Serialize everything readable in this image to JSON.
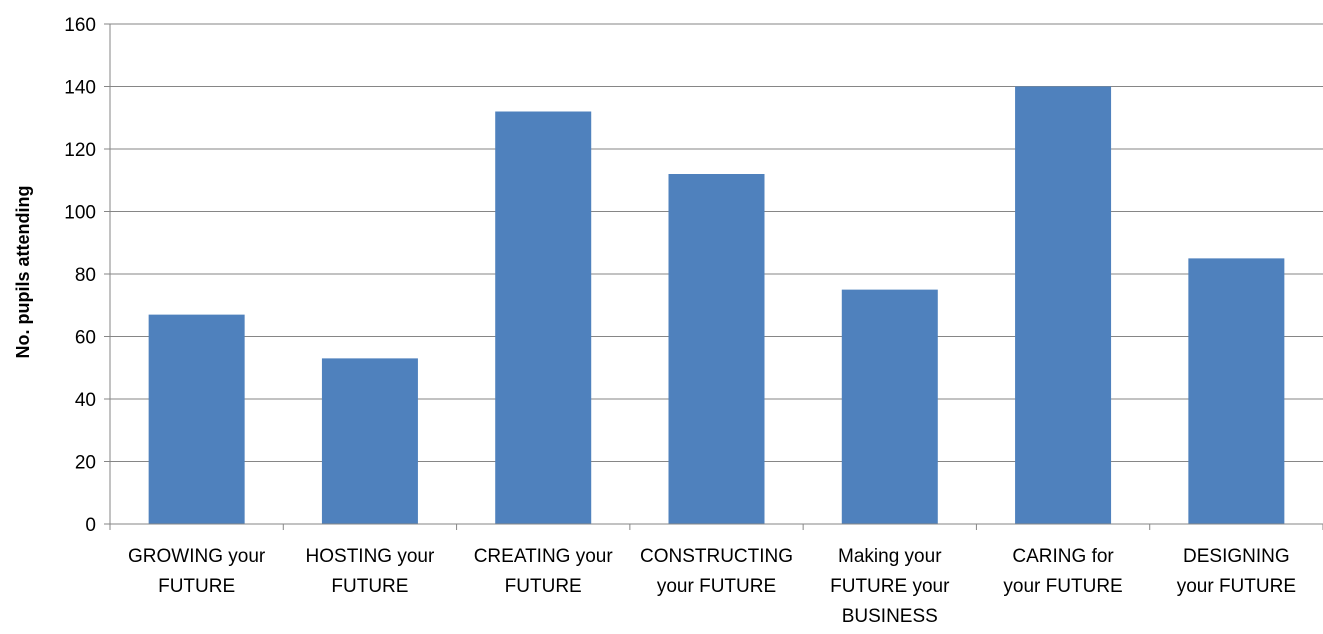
{
  "chart_data": {
    "type": "bar",
    "title": "",
    "xlabel": "",
    "ylabel": "No. pupils attending",
    "ylim": [
      0,
      160
    ],
    "yticks": [
      0,
      20,
      40,
      60,
      80,
      100,
      120,
      140,
      160
    ],
    "grid": true,
    "legend": "none",
    "bar_color": "#4f81bd",
    "categories": [
      [
        "GROWING your",
        "FUTURE"
      ],
      [
        "HOSTING your",
        "FUTURE"
      ],
      [
        "CREATING your",
        "FUTURE"
      ],
      [
        "CONSTRUCTING",
        "your FUTURE"
      ],
      [
        "Making your",
        "FUTURE your",
        "BUSINESS"
      ],
      [
        "CARING for",
        "your FUTURE"
      ],
      [
        "DESIGNING",
        "your FUTURE"
      ]
    ],
    "values": [
      67,
      53,
      132,
      112,
      75,
      140,
      85
    ]
  }
}
